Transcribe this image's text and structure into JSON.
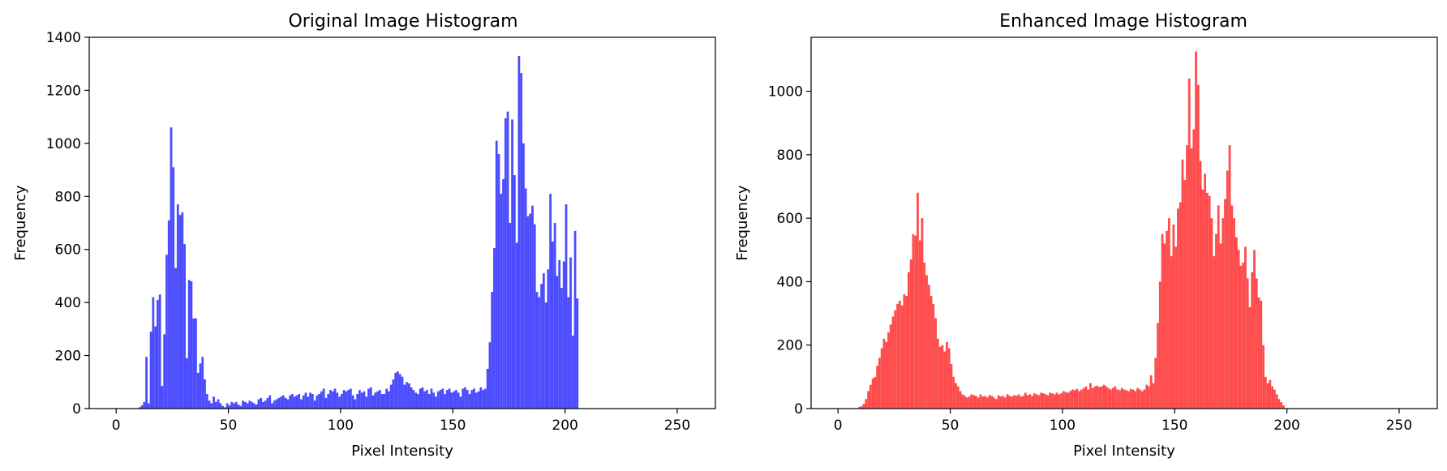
{
  "chart_data": [
    {
      "type": "bar",
      "title": "Original Image Histogram",
      "xlabel": "Pixel Intensity",
      "ylabel": "Frequency",
      "xlim": [
        -12,
        267
      ],
      "ylim": [
        0,
        1400
      ],
      "xticks": [
        0,
        50,
        100,
        150,
        200,
        250
      ],
      "yticks": [
        0,
        200,
        400,
        600,
        800,
        1000,
        1200,
        1400
      ],
      "color": "#4b4bff",
      "bin_width": 1,
      "x_start": 10,
      "values": [
        5,
        12,
        25,
        195,
        20,
        290,
        420,
        310,
        410,
        430,
        85,
        280,
        580,
        710,
        1060,
        910,
        530,
        770,
        730,
        740,
        620,
        190,
        485,
        480,
        340,
        340,
        135,
        170,
        195,
        110,
        55,
        30,
        20,
        45,
        25,
        35,
        20,
        10,
        5,
        20,
        12,
        25,
        20,
        25,
        15,
        10,
        30,
        25,
        20,
        30,
        25,
        20,
        15,
        35,
        40,
        25,
        30,
        40,
        50,
        20,
        30,
        35,
        40,
        45,
        50,
        40,
        35,
        50,
        55,
        45,
        50,
        55,
        35,
        50,
        60,
        45,
        60,
        55,
        30,
        50,
        55,
        65,
        75,
        40,
        55,
        70,
        65,
        75,
        60,
        45,
        55,
        70,
        65,
        70,
        75,
        50,
        35,
        55,
        70,
        60,
        65,
        45,
        75,
        80,
        50,
        60,
        65,
        70,
        55,
        55,
        75,
        65,
        90,
        110,
        135,
        140,
        130,
        120,
        90,
        100,
        95,
        80,
        70,
        60,
        55,
        75,
        80,
        65,
        70,
        55,
        75,
        60,
        45,
        65,
        70,
        75,
        55,
        70,
        75,
        60,
        65,
        70,
        60,
        45,
        75,
        80,
        70,
        55,
        70,
        75,
        60,
        65,
        80,
        70,
        75,
        150,
        250,
        440,
        605,
        1010,
        960,
        810,
        865,
        1095,
        1120,
        700,
        1090,
        880,
        625,
        1330,
        1265,
        1000,
        830,
        725,
        735,
        765,
        695,
        440,
        420,
        470,
        510,
        400,
        525,
        810,
        630,
        700,
        500,
        560,
        455,
        555,
        770,
        420,
        570,
        275,
        670,
        415
      ],
      "note_values": ""
    },
    {
      "type": "bar",
      "title": "Enhanced Image Histogram",
      "xlabel": "Pixel Intensity",
      "ylabel": "Frequency",
      "xlim": [
        -12,
        267
      ],
      "ylim": [
        0,
        1170
      ],
      "xticks": [
        0,
        50,
        100,
        150,
        200,
        250
      ],
      "yticks": [
        0,
        200,
        400,
        600,
        800,
        1000
      ],
      "color": "#ff4b4b",
      "bin_width": 1,
      "x_start": 9,
      "values": [
        5,
        8,
        15,
        30,
        55,
        75,
        95,
        100,
        135,
        160,
        190,
        220,
        210,
        240,
        265,
        290,
        310,
        330,
        340,
        325,
        360,
        355,
        430,
        470,
        550,
        545,
        680,
        530,
        600,
        460,
        420,
        390,
        355,
        330,
        285,
        220,
        195,
        200,
        180,
        210,
        190,
        140,
        100,
        80,
        70,
        55,
        45,
        40,
        35,
        38,
        45,
        42,
        40,
        35,
        45,
        38,
        40,
        35,
        42,
        40,
        35,
        30,
        42,
        38,
        40,
        35,
        45,
        40,
        38,
        42,
        40,
        45,
        38,
        40,
        50,
        42,
        45,
        40,
        48,
        45,
        42,
        50,
        48,
        45,
        42,
        50,
        48,
        45,
        50,
        45,
        48,
        55,
        52,
        50,
        55,
        60,
        58,
        62,
        55,
        60,
        65,
        70,
        60,
        80,
        65,
        70,
        72,
        68,
        70,
        75,
        70,
        65,
        60,
        65,
        70,
        60,
        58,
        65,
        60,
        58,
        55,
        62,
        60,
        55,
        65,
        60,
        55,
        60,
        75,
        70,
        105,
        80,
        160,
        270,
        400,
        550,
        520,
        560,
        600,
        480,
        580,
        510,
        630,
        650,
        785,
        720,
        830,
        1040,
        820,
        880,
        1125,
        1020,
        780,
        690,
        740,
        680,
        670,
        600,
        480,
        550,
        640,
        520,
        600,
        660,
        750,
        830,
        640,
        600,
        540,
        500,
        450,
        460,
        510,
        410,
        320,
        430,
        500,
        410,
        350,
        340,
        200,
        100,
        80,
        90,
        70,
        60,
        45,
        30,
        20,
        10
      ]
    }
  ]
}
